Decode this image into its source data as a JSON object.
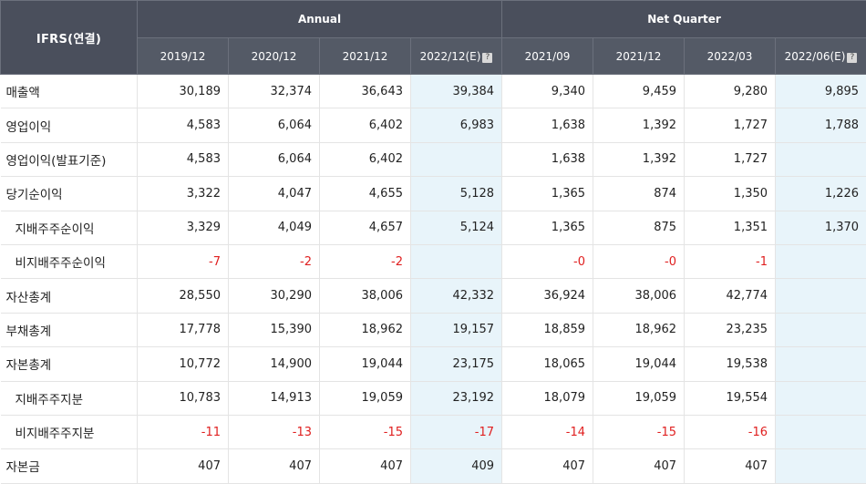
{
  "header": {
    "corner": "IFRS(연결)",
    "group_annual": "Annual",
    "group_quarter": "Net Quarter",
    "periods": [
      {
        "label": "2019/12",
        "help": false
      },
      {
        "label": "2020/12",
        "help": false
      },
      {
        "label": "2021/12",
        "help": false
      },
      {
        "label": "2022/12(E)",
        "help": true
      },
      {
        "label": "2021/09",
        "help": false
      },
      {
        "label": "2021/12",
        "help": false
      },
      {
        "label": "2022/03",
        "help": false
      },
      {
        "label": "2022/06(E)",
        "help": true
      }
    ],
    "help_icon": "question-icon"
  },
  "rows": [
    {
      "label": "매출액",
      "sub": false,
      "values": [
        "30,189",
        "32,374",
        "36,643",
        "39,384",
        "9,340",
        "9,459",
        "9,280",
        "9,895"
      ]
    },
    {
      "label": "영업이익",
      "sub": false,
      "values": [
        "4,583",
        "6,064",
        "6,402",
        "6,983",
        "1,638",
        "1,392",
        "1,727",
        "1,788"
      ]
    },
    {
      "label": "영업이익(발표기준)",
      "sub": false,
      "values": [
        "4,583",
        "6,064",
        "6,402",
        "",
        "1,638",
        "1,392",
        "1,727",
        ""
      ]
    },
    {
      "label": "당기순이익",
      "sub": false,
      "values": [
        "3,322",
        "4,047",
        "4,655",
        "5,128",
        "1,365",
        "874",
        "1,350",
        "1,226"
      ]
    },
    {
      "label": "지배주주순이익",
      "sub": true,
      "values": [
        "3,329",
        "4,049",
        "4,657",
        "5,124",
        "1,365",
        "875",
        "1,351",
        "1,370"
      ]
    },
    {
      "label": "비지배주주순이익",
      "sub": true,
      "values": [
        "-7",
        "-2",
        "-2",
        "",
        "-0",
        "-0",
        "-1",
        ""
      ]
    },
    {
      "label": "자산총계",
      "sub": false,
      "values": [
        "28,550",
        "30,290",
        "38,006",
        "42,332",
        "36,924",
        "38,006",
        "42,774",
        ""
      ]
    },
    {
      "label": "부채총계",
      "sub": false,
      "values": [
        "17,778",
        "15,390",
        "18,962",
        "19,157",
        "18,859",
        "18,962",
        "23,235",
        ""
      ]
    },
    {
      "label": "자본총계",
      "sub": false,
      "values": [
        "10,772",
        "14,900",
        "19,044",
        "23,175",
        "18,065",
        "19,044",
        "19,538",
        ""
      ]
    },
    {
      "label": "지배주주지분",
      "sub": true,
      "values": [
        "10,783",
        "14,913",
        "19,059",
        "23,192",
        "18,079",
        "19,059",
        "19,554",
        ""
      ]
    },
    {
      "label": "비지배주주지분",
      "sub": true,
      "values": [
        "-11",
        "-13",
        "-15",
        "-17",
        "-14",
        "-15",
        "-16",
        ""
      ]
    },
    {
      "label": "자본금",
      "sub": false,
      "values": [
        "407",
        "407",
        "407",
        "409",
        "407",
        "407",
        "407",
        ""
      ]
    }
  ],
  "colors": {
    "header_bg": "#4a4f5c",
    "estimate_bg": "#e8f4fa",
    "negative": "#e02020"
  }
}
